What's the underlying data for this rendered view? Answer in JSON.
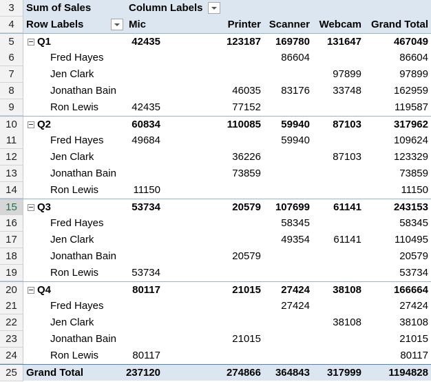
{
  "pivot": {
    "value_label": "Sum of Sales",
    "column_labels": "Column Labels",
    "row_labels": "Row Labels",
    "columns": [
      "Mic",
      "Printer",
      "Scanner",
      "Webcam",
      "Grand Total"
    ],
    "rows": [
      {
        "row_number": "5",
        "type": "quarter",
        "label": "Q1",
        "values": [
          "42435",
          "123187",
          "169780",
          "131647",
          "467049"
        ]
      },
      {
        "row_number": "6",
        "type": "person",
        "label": "Fred Hayes",
        "values": [
          "",
          "",
          "86604",
          "",
          "86604"
        ]
      },
      {
        "row_number": "7",
        "type": "person",
        "label": "Jen Clark",
        "values": [
          "",
          "",
          "",
          "97899",
          "97899"
        ]
      },
      {
        "row_number": "8",
        "type": "person",
        "label": "Jonathan Bain",
        "values": [
          "",
          "46035",
          "83176",
          "33748",
          "162959"
        ]
      },
      {
        "row_number": "9",
        "type": "person",
        "label": "Ron Lewis",
        "values": [
          "42435",
          "77152",
          "",
          "",
          "119587"
        ]
      },
      {
        "row_number": "10",
        "type": "quarter",
        "label": "Q2",
        "values": [
          "60834",
          "110085",
          "59940",
          "87103",
          "317962"
        ]
      },
      {
        "row_number": "11",
        "type": "person",
        "label": "Fred Hayes",
        "values": [
          "49684",
          "",
          "59940",
          "",
          "109624"
        ]
      },
      {
        "row_number": "12",
        "type": "person",
        "label": "Jen Clark",
        "values": [
          "",
          "36226",
          "",
          "87103",
          "123329"
        ]
      },
      {
        "row_number": "13",
        "type": "person",
        "label": "Jonathan Bain",
        "values": [
          "",
          "73859",
          "",
          "",
          "73859"
        ]
      },
      {
        "row_number": "14",
        "type": "person",
        "label": "Ron Lewis",
        "values": [
          "11150",
          "",
          "",
          "",
          "11150"
        ]
      },
      {
        "row_number": "15",
        "type": "quarter",
        "label": "Q3",
        "values": [
          "53734",
          "20579",
          "107699",
          "61141",
          "243153"
        ]
      },
      {
        "row_number": "16",
        "type": "person",
        "label": "Fred Hayes",
        "values": [
          "",
          "",
          "58345",
          "",
          "58345"
        ]
      },
      {
        "row_number": "17",
        "type": "person",
        "label": "Jen Clark",
        "values": [
          "",
          "",
          "49354",
          "61141",
          "110495"
        ]
      },
      {
        "row_number": "18",
        "type": "person",
        "label": "Jonathan Bain",
        "values": [
          "",
          "20579",
          "",
          "",
          "20579"
        ]
      },
      {
        "row_number": "19",
        "type": "person",
        "label": "Ron Lewis",
        "values": [
          "53734",
          "",
          "",
          "",
          "53734"
        ]
      },
      {
        "row_number": "20",
        "type": "quarter",
        "label": "Q4",
        "values": [
          "80117",
          "21015",
          "27424",
          "38108",
          "166664"
        ]
      },
      {
        "row_number": "21",
        "type": "person",
        "label": "Fred Hayes",
        "values": [
          "",
          "",
          "27424",
          "",
          "27424"
        ]
      },
      {
        "row_number": "22",
        "type": "person",
        "label": "Jen Clark",
        "values": [
          "",
          "",
          "",
          "38108",
          "38108"
        ]
      },
      {
        "row_number": "23",
        "type": "person",
        "label": "Jonathan Bain",
        "values": [
          "",
          "21015",
          "",
          "",
          "21015"
        ]
      },
      {
        "row_number": "24",
        "type": "person",
        "label": "Ron Lewis",
        "values": [
          "80117",
          "",
          "",
          "",
          "80117"
        ]
      }
    ],
    "grand_total": {
      "row_number": "25",
      "label": "Grand Total",
      "values": [
        "237120",
        "274866",
        "364843",
        "317999",
        "1194828"
      ]
    },
    "header_row_numbers": [
      "3",
      "4"
    ],
    "selected_row_number": "15"
  },
  "colors": {
    "header_fill": "#dce6f1",
    "separator": "#95b3d7",
    "selected_row_header": "#1e7145"
  }
}
